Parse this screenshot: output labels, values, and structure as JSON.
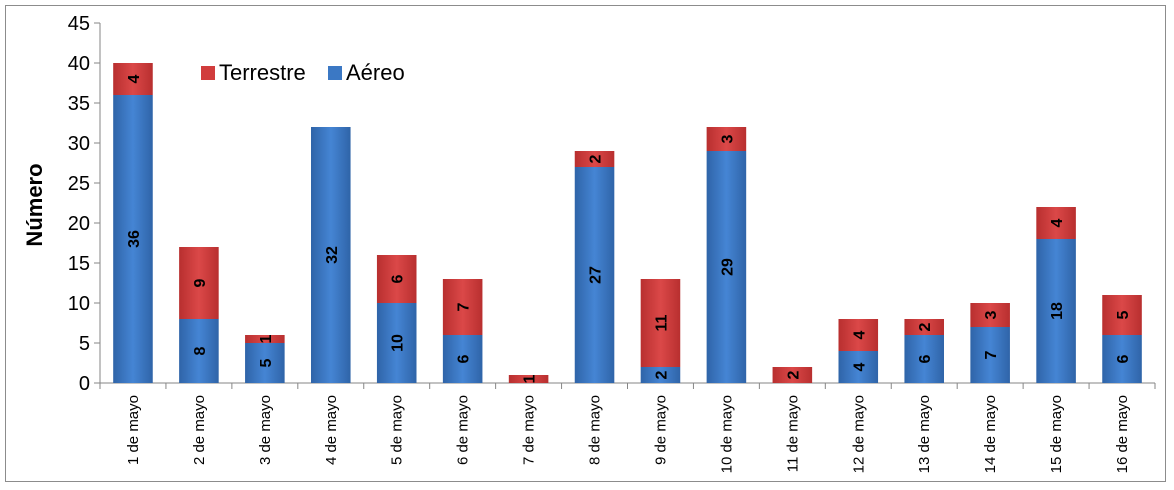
{
  "chart_data": {
    "type": "bar",
    "stacked": true,
    "title": "",
    "xlabel": "",
    "ylabel": "Número",
    "ylim": [
      0,
      45
    ],
    "yticks": [
      0,
      5,
      10,
      15,
      20,
      25,
      30,
      35,
      40,
      45
    ],
    "grid": false,
    "legend_placement": "top-left",
    "categories": [
      "1 de mayo",
      "2 de mayo",
      "3 de mayo",
      "4 de mayo",
      "5 de mayo",
      "6 de mayo",
      "7 de mayo",
      "8 de mayo",
      "9 de mayo",
      "10 de mayo",
      "11 de mayo",
      "12 de mayo",
      "13 de mayo",
      "14 de mayo",
      "15 de mayo",
      "16 de mayo"
    ],
    "series": [
      {
        "name": "Aéreo",
        "color": "#3b78c4",
        "values": [
          36,
          8,
          5,
          32,
          10,
          6,
          0,
          27,
          2,
          29,
          0,
          4,
          6,
          7,
          18,
          6
        ]
      },
      {
        "name": "Terrestre",
        "color": "#d13c3c",
        "values": [
          4,
          9,
          1,
          0,
          6,
          7,
          1,
          2,
          11,
          3,
          2,
          4,
          2,
          3,
          4,
          5
        ]
      }
    ],
    "data_labels": {
      "Aéreo": [
        "36",
        "8",
        "5",
        "32",
        "10",
        "6",
        "",
        "27",
        "2",
        "29",
        "",
        "4",
        "6",
        "7",
        "18",
        "6"
      ],
      "Terrestre": [
        "4",
        "9",
        "1",
        "",
        "6",
        "7",
        "1",
        "2",
        "11",
        "3",
        "2",
        "4",
        "2",
        "3",
        "4",
        "5"
      ]
    },
    "legend": [
      "Terrestre",
      "Aéreo"
    ]
  }
}
